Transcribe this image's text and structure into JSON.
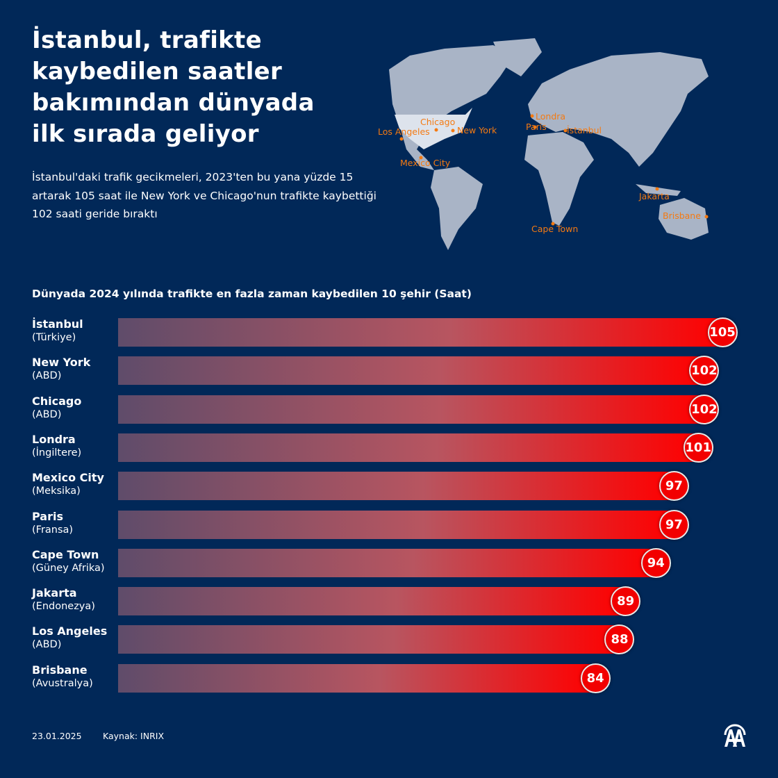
{
  "header": {
    "title": "İstanbul, trafikte kaybedilen saatler bakımından dünyada ilk sırada geliyor",
    "subtitle": "İstanbul'daki trafik gecikmeleri, 2023'ten bu yana yüzde 15 artarak 105 saat ile New York ve Chicago'nun trafikte kaybettiği 102 saati geride bıraktı"
  },
  "map": {
    "labels": [
      "Chicago",
      "Los Angeles",
      "New York",
      "Mexico City",
      "Londra",
      "Paris",
      "İstanbul",
      "Jakarta",
      "Cape Town",
      "Brisbane"
    ],
    "label_color": "#f47a12",
    "land_color": "#a9b4c6",
    "highlight_color": "#dde3ec"
  },
  "chart_data": {
    "type": "bar",
    "orientation": "horizontal",
    "title": "Dünyada 2024 yılında trafikte en fazla zaman kaybedilen 10 şehir (Saat)",
    "categories": [
      "İstanbul",
      "New York",
      "Chicago",
      "Londra",
      "Mexico City",
      "Paris",
      "Cape Town",
      "Jakarta",
      "Los Angeles",
      "Brisbane"
    ],
    "countries": [
      "(Türkiye)",
      "(ABD)",
      "(ABD)",
      "(İngiltere)",
      "(Meksika)",
      "(Fransa)",
      "(Güney Afrika)",
      "(Endonezya)",
      "(ABD)",
      "(Avustralya)"
    ],
    "values": [
      105,
      102,
      102,
      101,
      97,
      97,
      94,
      89,
      88,
      84
    ],
    "value_labels": [
      "105",
      "102",
      "102",
      "101",
      "97",
      "97",
      "94",
      "89",
      "88",
      "84"
    ],
    "colors": {
      "bar_start": "#5f4c6a",
      "bar_end": "#ff0000",
      "badge": "#f20000"
    }
  },
  "footer": {
    "date": "23.01.2025",
    "source": "Kaynak: INRIX",
    "logo": "AA"
  }
}
